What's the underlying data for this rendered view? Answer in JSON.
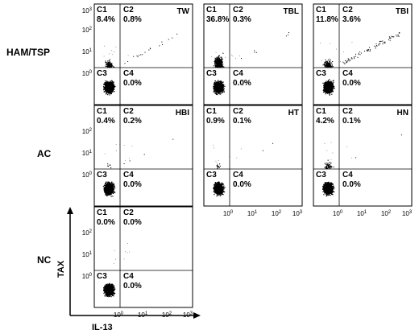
{
  "chart_data": [
    {
      "type": "scatter",
      "group": "HAM/TSP",
      "sample": "TW",
      "quadrants": {
        "C1": "8.4%",
        "C2": "0.8%",
        "C4": "0.0%"
      }
    },
    {
      "type": "scatter",
      "group": "HAM/TSP",
      "sample": "TBL",
      "quadrants": {
        "C1": "36.8%",
        "C2": "0.3%",
        "C4": "0.0%"
      }
    },
    {
      "type": "scatter",
      "group": "HAM/TSP",
      "sample": "TBI",
      "quadrants": {
        "C1": "11.8%",
        "C2": "3.6%",
        "C4": "0.0%"
      }
    },
    {
      "type": "scatter",
      "group": "AC",
      "sample": "HBI",
      "quadrants": {
        "C1": "0.4%",
        "C2": "0.2%",
        "C4": "0.0%"
      }
    },
    {
      "type": "scatter",
      "group": "AC",
      "sample": "HT",
      "quadrants": {
        "C1": "0.9%",
        "C2": "0.1%",
        "C4": "0.0%"
      }
    },
    {
      "type": "scatter",
      "group": "AC",
      "sample": "HN",
      "quadrants": {
        "C1": "4.2%",
        "C2": "0.1%",
        "C4": "0.0%"
      }
    },
    {
      "type": "scatter",
      "group": "NC",
      "sample": "",
      "quadrants": {
        "C1": "0.0%",
        "C2": "0.0%",
        "C4": "0.0%"
      }
    }
  ],
  "groups": [
    "HAM/TSP",
    "AC",
    "NC"
  ],
  "quadrant_names": [
    "C1",
    "C2",
    "C3",
    "C4"
  ],
  "y_ticks": [
    "10",
    "10",
    "10",
    "10"
  ],
  "y_tick_exps": [
    "3",
    "2",
    "1",
    "0"
  ],
  "x_ticks": [
    "10",
    "10",
    "10",
    "10"
  ],
  "x_tick_exps": [
    "0",
    "1",
    "2",
    "3"
  ],
  "xlabel": "IL-13",
  "ylabel": "TAX",
  "colors": {
    "ink": "#000000",
    "background": "#ffffff"
  }
}
